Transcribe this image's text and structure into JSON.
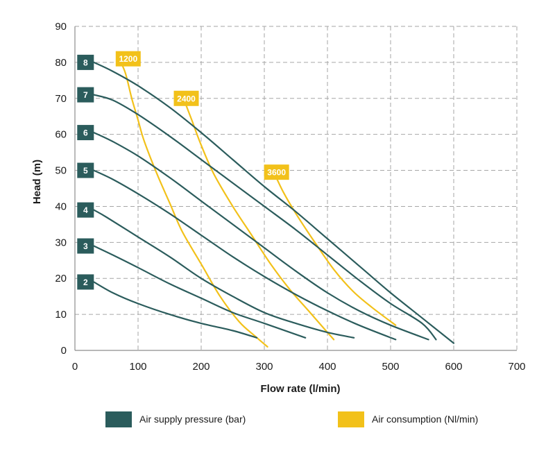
{
  "colors": {
    "pressure": "#2b5c5c",
    "consumption": "#f2c11a",
    "grid": "#a6a6a6",
    "axis": "#8c8c8c"
  },
  "chart_data": {
    "type": "line",
    "xlabel": "Flow rate (l/min)",
    "ylabel": "Head (m)",
    "xlim": [
      0,
      700
    ],
    "ylim": [
      0,
      90
    ],
    "xticks": [
      0,
      100,
      200,
      300,
      400,
      500,
      600,
      700
    ],
    "yticks": [
      0,
      10,
      20,
      30,
      40,
      50,
      60,
      70,
      80,
      90
    ],
    "grid": true,
    "grid_style": "dashed",
    "legend_position": "bottom",
    "legend": [
      {
        "label": "Air supply pressure (bar)",
        "color": "#2b5c5c"
      },
      {
        "label": "Air consumption (Nl/min)",
        "color": "#f2c11a"
      }
    ],
    "pressure_series": [
      {
        "label": "8",
        "points": [
          [
            30,
            80
          ],
          [
            60,
            77.5
          ],
          [
            100,
            73.5
          ],
          [
            150,
            67.5
          ],
          [
            200,
            60.5
          ],
          [
            250,
            53
          ],
          [
            300,
            45.5
          ],
          [
            350,
            38.5
          ],
          [
            400,
            31
          ],
          [
            450,
            23.5
          ],
          [
            500,
            16
          ],
          [
            550,
            9
          ],
          [
            600,
            2
          ]
        ]
      },
      {
        "label": "7",
        "points": [
          [
            30,
            71
          ],
          [
            60,
            69.5
          ],
          [
            100,
            65.5
          ],
          [
            150,
            59.5
          ],
          [
            200,
            53
          ],
          [
            250,
            46.5
          ],
          [
            300,
            40
          ],
          [
            350,
            33.5
          ],
          [
            400,
            26.5
          ],
          [
            450,
            19.5
          ],
          [
            500,
            13
          ],
          [
            550,
            7.5
          ],
          [
            572,
            3
          ]
        ]
      },
      {
        "label": "6",
        "points": [
          [
            30,
            60.5
          ],
          [
            60,
            58
          ],
          [
            100,
            54
          ],
          [
            150,
            48
          ],
          [
            200,
            41.5
          ],
          [
            250,
            35
          ],
          [
            300,
            28.5
          ],
          [
            350,
            22
          ],
          [
            400,
            16
          ],
          [
            450,
            11
          ],
          [
            500,
            7
          ],
          [
            560,
            3
          ]
        ]
      },
      {
        "label": "5",
        "points": [
          [
            30,
            50
          ],
          [
            60,
            47.5
          ],
          [
            100,
            43.5
          ],
          [
            150,
            38
          ],
          [
            200,
            32
          ],
          [
            250,
            26
          ],
          [
            300,
            20.5
          ],
          [
            350,
            15.5
          ],
          [
            400,
            11
          ],
          [
            450,
            7
          ],
          [
            508,
            3
          ]
        ]
      },
      {
        "label": "4",
        "points": [
          [
            30,
            39
          ],
          [
            50,
            37
          ],
          [
            100,
            31.5
          ],
          [
            150,
            26
          ],
          [
            200,
            20
          ],
          [
            250,
            15
          ],
          [
            300,
            10.5
          ],
          [
            350,
            7.5
          ],
          [
            400,
            5
          ],
          [
            442,
            3.5
          ]
        ]
      },
      {
        "label": "3",
        "points": [
          [
            30,
            29
          ],
          [
            60,
            26.5
          ],
          [
            100,
            23
          ],
          [
            150,
            18.5
          ],
          [
            200,
            14.5
          ],
          [
            250,
            10.5
          ],
          [
            300,
            7.5
          ],
          [
            365,
            3.5
          ]
        ]
      },
      {
        "label": "2",
        "points": [
          [
            30,
            19
          ],
          [
            60,
            16
          ],
          [
            100,
            13
          ],
          [
            150,
            10
          ],
          [
            200,
            7.5
          ],
          [
            250,
            5.5
          ],
          [
            288,
            3.5
          ]
        ]
      }
    ],
    "consumption_series": [
      {
        "label": "1200",
        "label_at": [
          80,
          81
        ],
        "points": [
          [
            70,
            81
          ],
          [
            80,
            77
          ],
          [
            90,
            70
          ],
          [
            100,
            64
          ],
          [
            110,
            58
          ],
          [
            130,
            49
          ],
          [
            150,
            41
          ],
          [
            170,
            33
          ],
          [
            200,
            24
          ],
          [
            230,
            15
          ],
          [
            260,
            8
          ],
          [
            285,
            4
          ],
          [
            305,
            1
          ]
        ]
      },
      {
        "label": "2400",
        "label_at": [
          172,
          70
        ],
        "points": [
          [
            172,
            70
          ],
          [
            185,
            64
          ],
          [
            200,
            57
          ],
          [
            220,
            49
          ],
          [
            250,
            40
          ],
          [
            280,
            32
          ],
          [
            310,
            24
          ],
          [
            340,
            17
          ],
          [
            370,
            11
          ],
          [
            395,
            6
          ],
          [
            410,
            3
          ]
        ]
      },
      {
        "label": "3600",
        "label_at": [
          315,
          49.5
        ],
        "points": [
          [
            315,
            49.5
          ],
          [
            330,
            44
          ],
          [
            350,
            38
          ],
          [
            380,
            30
          ],
          [
            410,
            22.5
          ],
          [
            440,
            16.5
          ],
          [
            470,
            12
          ],
          [
            508,
            7
          ]
        ]
      }
    ]
  }
}
